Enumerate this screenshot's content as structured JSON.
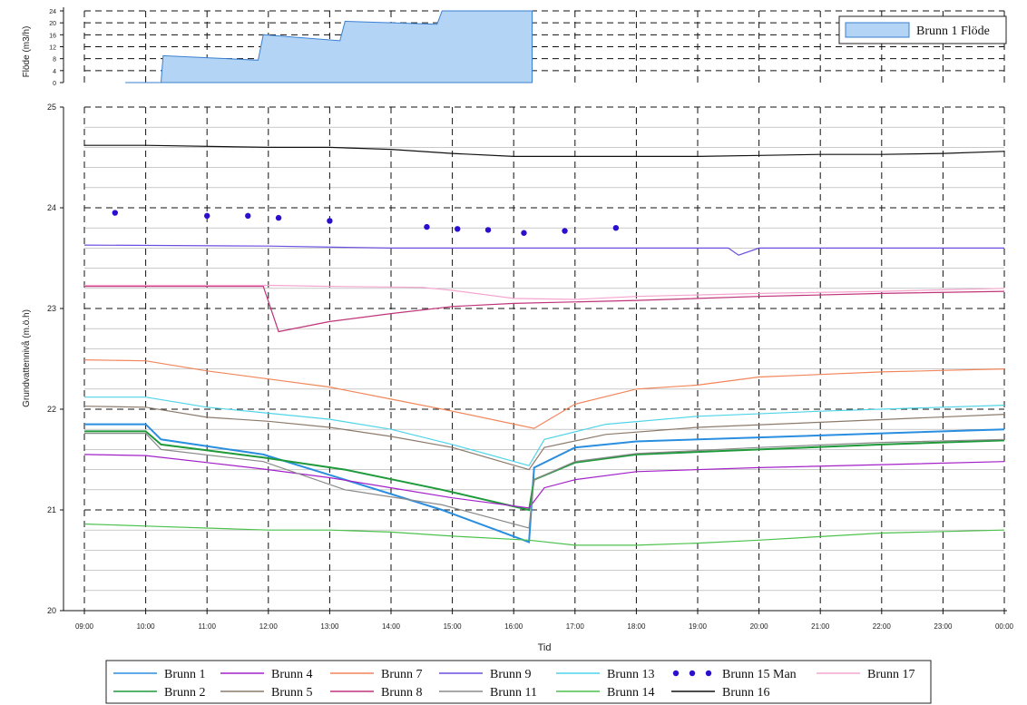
{
  "chart_data": [
    {
      "type": "area",
      "ylabel": "Flöde (m3/h)",
      "ylim": [
        0,
        24
      ],
      "yticks": [
        "0",
        "4",
        "8",
        "12",
        "16",
        "20",
        "24"
      ],
      "grid": true,
      "legend_position": "top-right",
      "series": [
        {
          "name": "Brunn 1 Flöde",
          "color": "#b3d4f5",
          "x": [
            "09:40",
            "10:15",
            "10:17",
            "11:50",
            "11:55",
            "13:10",
            "13:15",
            "14:45",
            "14:50",
            "16:18",
            "16:18"
          ],
          "values": [
            0,
            0,
            9,
            7.5,
            16,
            14,
            20.5,
            19.5,
            24,
            24,
            0
          ]
        }
      ]
    },
    {
      "type": "line",
      "xlabel": "Tid",
      "ylabel": "Grundvattennivå (m.ö.h)",
      "ylim": [
        20,
        25
      ],
      "yticks": [
        "20",
        "21",
        "22",
        "23",
        "24",
        "25"
      ],
      "xticks": [
        "09:00",
        "10:00",
        "11:00",
        "12:00",
        "13:00",
        "14:00",
        "15:00",
        "16:00",
        "17:00",
        "18:00",
        "19:00",
        "20:00",
        "21:00",
        "22:00",
        "23:00",
        "00:00"
      ],
      "grid": true,
      "legend_position": "bottom",
      "series": [
        {
          "name": "Brunn 1",
          "color": "#2a8ee0",
          "x": [
            "09:00",
            "10:00",
            "10:15",
            "11:55",
            "13:15",
            "14:50",
            "16:15",
            "16:20",
            "17:00",
            "18:00",
            "20:00",
            "22:00",
            "00:00"
          ],
          "values": [
            21.85,
            21.85,
            21.7,
            21.55,
            21.3,
            21.0,
            20.68,
            21.42,
            21.62,
            21.68,
            21.72,
            21.76,
            21.8
          ]
        },
        {
          "name": "Brunn 2",
          "color": "#1f9a3a",
          "x": [
            "09:00",
            "10:00",
            "10:15",
            "11:55",
            "13:15",
            "14:50",
            "16:15",
            "16:20",
            "17:00",
            "18:00",
            "20:00",
            "22:00",
            "00:00"
          ],
          "values": [
            21.78,
            21.78,
            21.65,
            21.52,
            21.4,
            21.2,
            21.0,
            21.3,
            21.47,
            21.55,
            21.6,
            21.65,
            21.69
          ]
        },
        {
          "name": "Brunn 4",
          "color": "#a320c8",
          "x": [
            "09:00",
            "10:00",
            "11:00",
            "12:00",
            "13:00",
            "14:00",
            "15:00",
            "16:15",
            "16:30",
            "17:00",
            "18:00",
            "20:00",
            "22:00",
            "00:00"
          ],
          "values": [
            21.55,
            21.54,
            21.47,
            21.4,
            21.32,
            21.22,
            21.12,
            21.02,
            21.22,
            21.3,
            21.38,
            21.42,
            21.45,
            21.48
          ]
        },
        {
          "name": "Brunn 5",
          "color": "#8c7a6b",
          "x": [
            "09:00",
            "10:00",
            "11:00",
            "12:00",
            "13:00",
            "14:00",
            "15:00",
            "16:15",
            "16:30",
            "17:30",
            "19:00",
            "21:00",
            "00:00"
          ],
          "values": [
            22.03,
            22.02,
            21.92,
            21.88,
            21.82,
            21.73,
            21.62,
            21.4,
            21.62,
            21.75,
            21.82,
            21.87,
            21.95
          ]
        },
        {
          "name": "Brunn 7",
          "color": "#f2865a",
          "x": [
            "09:00",
            "10:00",
            "11:00",
            "12:00",
            "13:00",
            "14:00",
            "15:00",
            "16:20",
            "17:00",
            "18:00",
            "19:00",
            "20:00",
            "22:00",
            "00:00"
          ],
          "values": [
            22.49,
            22.48,
            22.38,
            22.3,
            22.22,
            22.1,
            21.98,
            21.81,
            22.05,
            22.2,
            22.24,
            22.32,
            22.37,
            22.4
          ]
        },
        {
          "name": "Brunn 8",
          "color": "#c0347a",
          "x": [
            "09:00",
            "11:55",
            "12:10",
            "13:00",
            "14:00",
            "15:00",
            "16:00",
            "18:00",
            "20:00",
            "22:00",
            "00:00"
          ],
          "values": [
            23.22,
            23.22,
            22.77,
            22.87,
            22.95,
            23.02,
            23.05,
            23.08,
            23.12,
            23.15,
            23.17
          ]
        },
        {
          "name": "Brunn 9",
          "color": "#6b4fe0",
          "x": [
            "09:00",
            "12:00",
            "14:00",
            "16:00",
            "18:00",
            "19:30",
            "19:40",
            "20:00",
            "22:00",
            "00:00"
          ],
          "values": [
            23.63,
            23.62,
            23.6,
            23.6,
            23.6,
            23.6,
            23.53,
            23.6,
            23.6,
            23.6
          ]
        },
        {
          "name": "Brunn 11",
          "color": "#8a8a8a",
          "x": [
            "09:00",
            "10:00",
            "10:15",
            "11:55",
            "13:15",
            "14:50",
            "16:15",
            "16:20",
            "17:00",
            "18:00",
            "20:00",
            "22:00",
            "00:00"
          ],
          "values": [
            21.76,
            21.76,
            21.6,
            21.48,
            21.2,
            21.05,
            20.82,
            21.3,
            21.48,
            21.56,
            21.62,
            21.67,
            21.7
          ]
        },
        {
          "name": "Brunn 13",
          "color": "#4fd4e8",
          "x": [
            "09:00",
            "10:00",
            "11:00",
            "12:00",
            "13:00",
            "14:00",
            "15:00",
            "16:15",
            "16:30",
            "17:30",
            "19:00",
            "21:00",
            "00:00"
          ],
          "values": [
            22.12,
            22.12,
            22.02,
            21.96,
            21.9,
            21.8,
            21.65,
            21.44,
            21.7,
            21.85,
            21.93,
            21.98,
            22.04
          ]
        },
        {
          "name": "Brunn 14",
          "color": "#4cc24c",
          "x": [
            "09:00",
            "10:00",
            "11:00",
            "12:00",
            "13:00",
            "14:00",
            "15:00",
            "16:15",
            "17:00",
            "18:00",
            "19:00",
            "20:00",
            "22:00",
            "00:00"
          ],
          "values": [
            20.86,
            20.84,
            20.82,
            20.8,
            20.8,
            20.78,
            20.74,
            20.7,
            20.65,
            20.65,
            20.67,
            20.7,
            20.77,
            20.8
          ]
        },
        {
          "name": "Brunn 15 Man",
          "color": "#2a0fcf",
          "x": [
            "09:30",
            "11:00",
            "11:40",
            "12:10",
            "13:00",
            "14:35",
            "15:05",
            "15:35",
            "16:10",
            "16:50",
            "17:40"
          ],
          "values": [
            23.95,
            23.92,
            23.92,
            23.9,
            23.87,
            23.81,
            23.79,
            23.78,
            23.75,
            23.77,
            23.8
          ]
        },
        {
          "name": "Brunn 16",
          "color": "#111111",
          "x": [
            "09:00",
            "10:00",
            "12:00",
            "13:00",
            "14:00",
            "15:00",
            "16:00",
            "17:00",
            "18:00",
            "19:00",
            "20:00",
            "21:00",
            "22:00",
            "23:00",
            "00:00"
          ],
          "values": [
            24.62,
            24.62,
            24.6,
            24.6,
            24.58,
            24.54,
            24.51,
            24.51,
            24.51,
            24.51,
            24.52,
            24.53,
            24.53,
            24.54,
            24.56
          ]
        },
        {
          "name": "Brunn 17",
          "color": "#f4a6cf",
          "x": [
            "09:00",
            "12:00",
            "13:00",
            "14:30",
            "15:00",
            "16:00",
            "17:00",
            "18:00",
            "20:00",
            "22:00",
            "00:00"
          ],
          "values": [
            23.23,
            23.23,
            23.22,
            23.21,
            23.18,
            23.1,
            23.09,
            23.12,
            23.15,
            23.17,
            23.2
          ]
        }
      ]
    }
  ]
}
